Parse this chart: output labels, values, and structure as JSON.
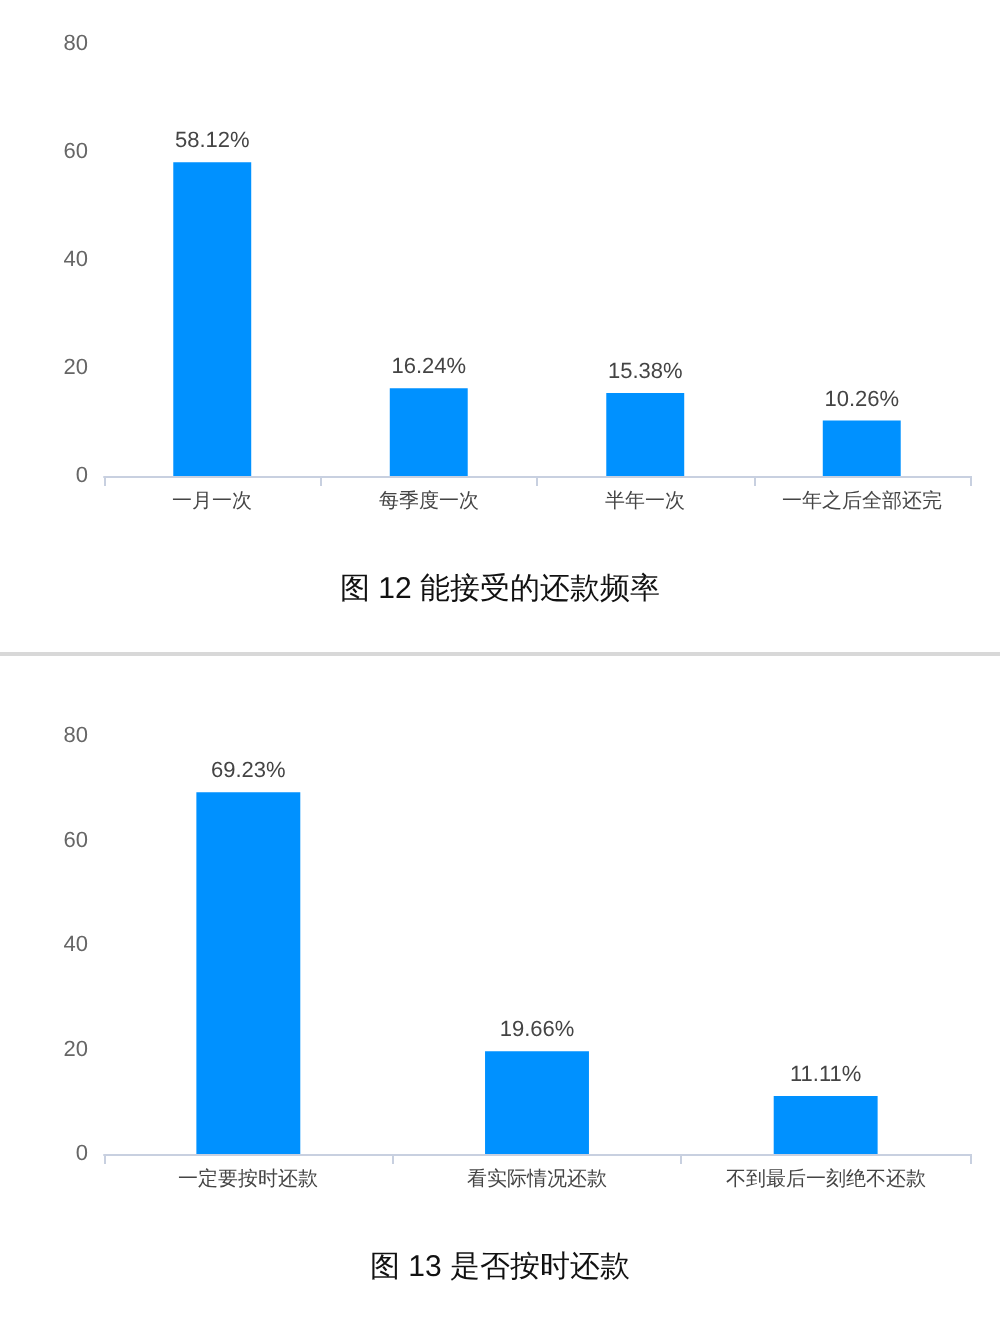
{
  "chart_data": [
    {
      "type": "bar",
      "title": "图 12 能接受的还款频率",
      "categories": [
        "一月一次",
        "每季度一次",
        "半年一次",
        "一年之后全部还完"
      ],
      "values": [
        58.12,
        16.24,
        15.38,
        10.26
      ],
      "value_labels": [
        "58.12%",
        "16.24%",
        "15.38%",
        "10.26%"
      ],
      "color": "#0091ff",
      "ylim": [
        0,
        80
      ],
      "yticks": [
        0,
        20,
        40,
        60,
        80
      ],
      "grid": false
    },
    {
      "type": "bar",
      "title": "图 13 是否按时还款",
      "categories": [
        "一定要按时还款",
        "看实际情况还款",
        "不到最后一刻绝不还款"
      ],
      "values": [
        69.23,
        19.66,
        11.11
      ],
      "value_labels": [
        "69.23%",
        "19.66%",
        "11.11%"
      ],
      "color": "#0091ff",
      "ylim": [
        0,
        80
      ],
      "yticks": [
        0,
        20,
        40,
        60,
        80
      ],
      "grid": false
    }
  ]
}
